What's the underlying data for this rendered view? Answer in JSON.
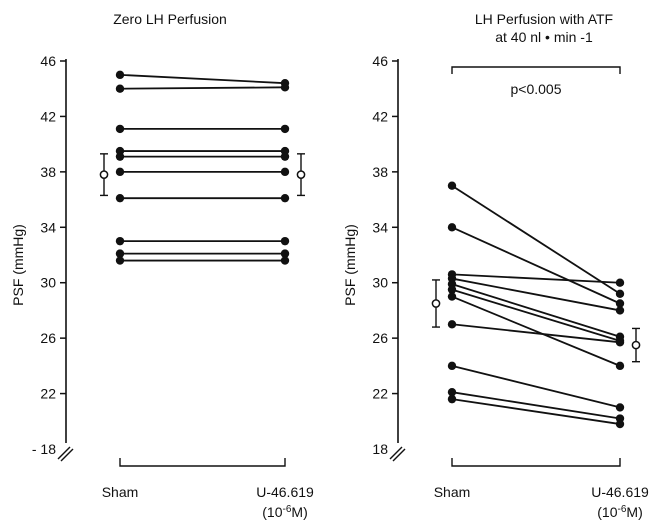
{
  "chart_data": [
    {
      "type": "line",
      "title": "Zero LH Perfusion",
      "title_line2": "",
      "ylabel": "PSF (mmHg)",
      "ylim": [
        18,
        46
      ],
      "yticks": [
        46,
        42,
        38,
        34,
        30,
        26,
        22,
        18
      ],
      "ytick_labels": [
        "46",
        "42",
        "38",
        "34",
        "30",
        "26",
        "22",
        "- 18"
      ],
      "categories": [
        "Sham",
        "U-46.619"
      ],
      "category_sublabels": [
        "",
        "(10-6M)"
      ],
      "significance": "",
      "pairs": [
        [
          45.0,
          44.4
        ],
        [
          44.0,
          44.1
        ],
        [
          41.1,
          41.1
        ],
        [
          39.5,
          39.5
        ],
        [
          39.1,
          39.1
        ],
        [
          38.0,
          38.0
        ],
        [
          36.1,
          36.1
        ],
        [
          33.0,
          33.0
        ],
        [
          32.1,
          32.1
        ],
        [
          31.6,
          31.6
        ]
      ],
      "mean_sem": [
        {
          "mean": 37.8,
          "sem": 1.5
        },
        {
          "mean": 37.8,
          "sem": 1.5
        }
      ],
      "grid": false
    },
    {
      "type": "line",
      "title": "LH Perfusion with ATF",
      "title_line2": "at 40 nl • min -1",
      "ylabel": "PSF (mmHg)",
      "ylim": [
        18,
        46
      ],
      "yticks": [
        46,
        42,
        38,
        34,
        30,
        26,
        22,
        18
      ],
      "ytick_labels": [
        "46",
        "42",
        "38",
        "34",
        "30",
        "26",
        "22",
        "18"
      ],
      "categories": [
        "Sham",
        "U-46.619"
      ],
      "category_sublabels": [
        "",
        "(10-6M)"
      ],
      "significance": "p<0.005",
      "pairs": [
        [
          37.0,
          29.2
        ],
        [
          34.0,
          28.5
        ],
        [
          30.6,
          30.0
        ],
        [
          30.3,
          28.0
        ],
        [
          29.9,
          26.1
        ],
        [
          29.5,
          25.8
        ],
        [
          29.0,
          24.0
        ],
        [
          27.0,
          25.7
        ],
        [
          24.0,
          21.0
        ],
        [
          22.1,
          20.2
        ],
        [
          21.6,
          19.8
        ]
      ],
      "mean_sem": [
        {
          "mean": 28.5,
          "sem": 1.7
        },
        {
          "mean": 25.5,
          "sem": 1.2
        }
      ],
      "grid": false
    }
  ]
}
